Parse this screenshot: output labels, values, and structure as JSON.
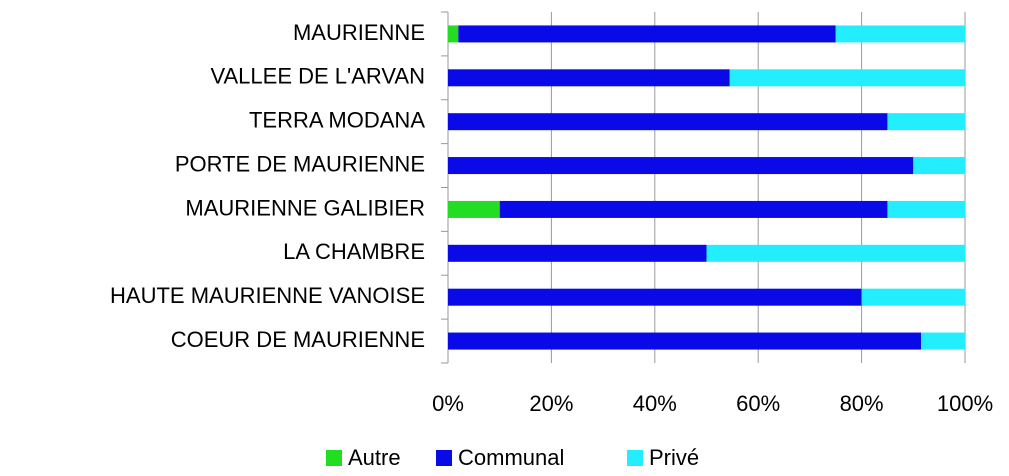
{
  "chart_data": {
    "type": "stacked_bar_horizontal",
    "categories": [
      "MAURIENNE",
      "VALLEE DE L'ARVAN",
      "TERRA MODANA",
      "PORTE DE MAURIENNE",
      "MAURIENNE GALIBIER",
      "LA CHAMBRE",
      "HAUTE MAURIENNE VANOISE",
      "COEUR DE MAURIENNE"
    ],
    "series": [
      {
        "name": "Autre",
        "color": "#22dd22",
        "values": [
          2,
          0,
          0,
          0,
          10,
          0,
          0,
          0
        ]
      },
      {
        "name": "Communal",
        "color": "#0a0ae8",
        "values": [
          73,
          54.5,
          85,
          90,
          75,
          50,
          80,
          91.5
        ]
      },
      {
        "name": "Privé",
        "color": "#22eeff",
        "values": [
          25,
          45.5,
          15,
          10,
          15,
          50,
          20,
          8.5
        ]
      }
    ],
    "xlim": [
      0,
      100
    ],
    "xticks": [
      {
        "value": 0,
        "label": "0%"
      },
      {
        "value": 20,
        "label": "20%"
      },
      {
        "value": 40,
        "label": "40%"
      },
      {
        "value": 60,
        "label": "60%"
      },
      {
        "value": 80,
        "label": "80%"
      },
      {
        "value": 100,
        "label": "100%"
      }
    ],
    "grid": true,
    "legend": "bottom"
  }
}
